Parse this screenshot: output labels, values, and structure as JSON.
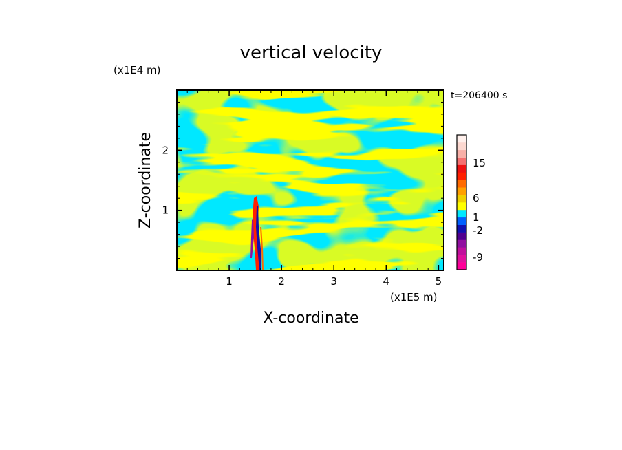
{
  "chart_data": {
    "type": "heatmap",
    "title": "vertical velocity",
    "xlabel": "X-coordinate",
    "ylabel": "Z-coordinate",
    "x_unit": "(x1E5 m)",
    "y_unit": "(x1E4 m)",
    "time_label": "t=206400 s",
    "x_ticks": [
      1,
      2,
      3,
      4,
      5
    ],
    "y_ticks": [
      1,
      2
    ],
    "xlim": [
      0,
      5.1
    ],
    "ylim": [
      0,
      3.0
    ],
    "colorbar": {
      "levels": [
        {
          "color": "#ff0099"
        },
        {
          "color": "#e0109c"
        },
        {
          "color": "#c0109c"
        },
        {
          "color": "#9010a0"
        },
        {
          "color": "#500090"
        },
        {
          "color": "#1010b0"
        },
        {
          "color": "#0060ff"
        },
        {
          "color": "#00e8ff"
        },
        {
          "color": "#ffff00"
        },
        {
          "color": "#f0d000"
        },
        {
          "color": "#ffa000"
        },
        {
          "color": "#ff6a00"
        },
        {
          "color": "#ff2000"
        },
        {
          "color": "#ee1111"
        },
        {
          "color": "#f57070"
        },
        {
          "color": "#f8b0a8"
        },
        {
          "color": "#fcd8d0"
        },
        {
          "color": "#fff0ec"
        }
      ],
      "tick_labels": [
        "15",
        "6",
        "1",
        "-2",
        "-9"
      ]
    },
    "dominant_colors": {
      "positive_weak": "#ffff00",
      "negative_weak": "#00e8ff",
      "strong_updraft": "#ff2000",
      "strong_downdraft": "#1010b0"
    }
  }
}
